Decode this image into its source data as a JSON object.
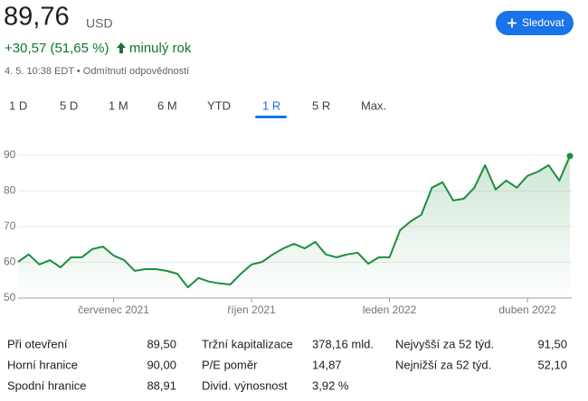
{
  "header": {
    "price": "89,76",
    "currency": "USD",
    "change": "+30,57 (51,65 %)",
    "period": "minulý rok",
    "timestamp": "4. 5. 10:38 EDT • Odmítnutí odpovědností",
    "follow": "Sledovat"
  },
  "tabs": {
    "items": [
      "1 D",
      "5 D",
      "1 M",
      "6 M",
      "YTD",
      "1 R",
      "5 R",
      "Max."
    ],
    "selected": 5
  },
  "chart_data": {
    "type": "line",
    "color": "#1e8e3e",
    "categories": [
      null,
      null,
      null,
      null,
      null,
      null,
      null,
      null,
      null,
      "červenec 2021",
      null,
      null,
      null,
      null,
      null,
      null,
      null,
      null,
      null,
      null,
      null,
      null,
      "říjen 2021",
      null,
      null,
      null,
      null,
      null,
      null,
      null,
      null,
      null,
      null,
      null,
      null,
      "leden 2022",
      null,
      null,
      null,
      null,
      null,
      null,
      null,
      null,
      null,
      null,
      null,
      null,
      "duben 2022",
      null,
      null,
      null,
      null
    ],
    "values": [
      60.1,
      62.2,
      59.4,
      60.6,
      58.6,
      61.4,
      61.4,
      63.7,
      64.4,
      61.9,
      60.6,
      57.6,
      58.1,
      58.1,
      57.6,
      56.8,
      53.0,
      55.6,
      54.6,
      54.1,
      53.8,
      56.8,
      59.4,
      60.1,
      62.2,
      63.9,
      65.2,
      63.9,
      65.7,
      62.2,
      61.4,
      62.2,
      62.7,
      59.6,
      61.4,
      61.4,
      69.0,
      71.5,
      73.3,
      80.9,
      82.4,
      77.3,
      77.8,
      80.9,
      87.2,
      80.4,
      82.9,
      80.9,
      84.2,
      85.4,
      87.2,
      82.9,
      89.76
    ],
    "ylim": [
      50,
      95
    ],
    "yticks": [
      50,
      60,
      70,
      80,
      90
    ],
    "grid": true
  },
  "stats": [
    [
      [
        "Při otevření",
        "89,50"
      ],
      [
        "Horní hranice",
        "90,00"
      ],
      [
        "Spodní hranice",
        "88,91"
      ]
    ],
    [
      [
        "Tržní kapitalizace",
        "378,16 mld."
      ],
      [
        "P/E poměr",
        "14,87"
      ],
      [
        "Divid. výnosnost",
        "3,92 %"
      ]
    ],
    [
      [
        "Nejvyšší za 52 týd.",
        "91,50"
      ],
      [
        "Nejnižší za 52 týd.",
        "52,10"
      ]
    ]
  ]
}
